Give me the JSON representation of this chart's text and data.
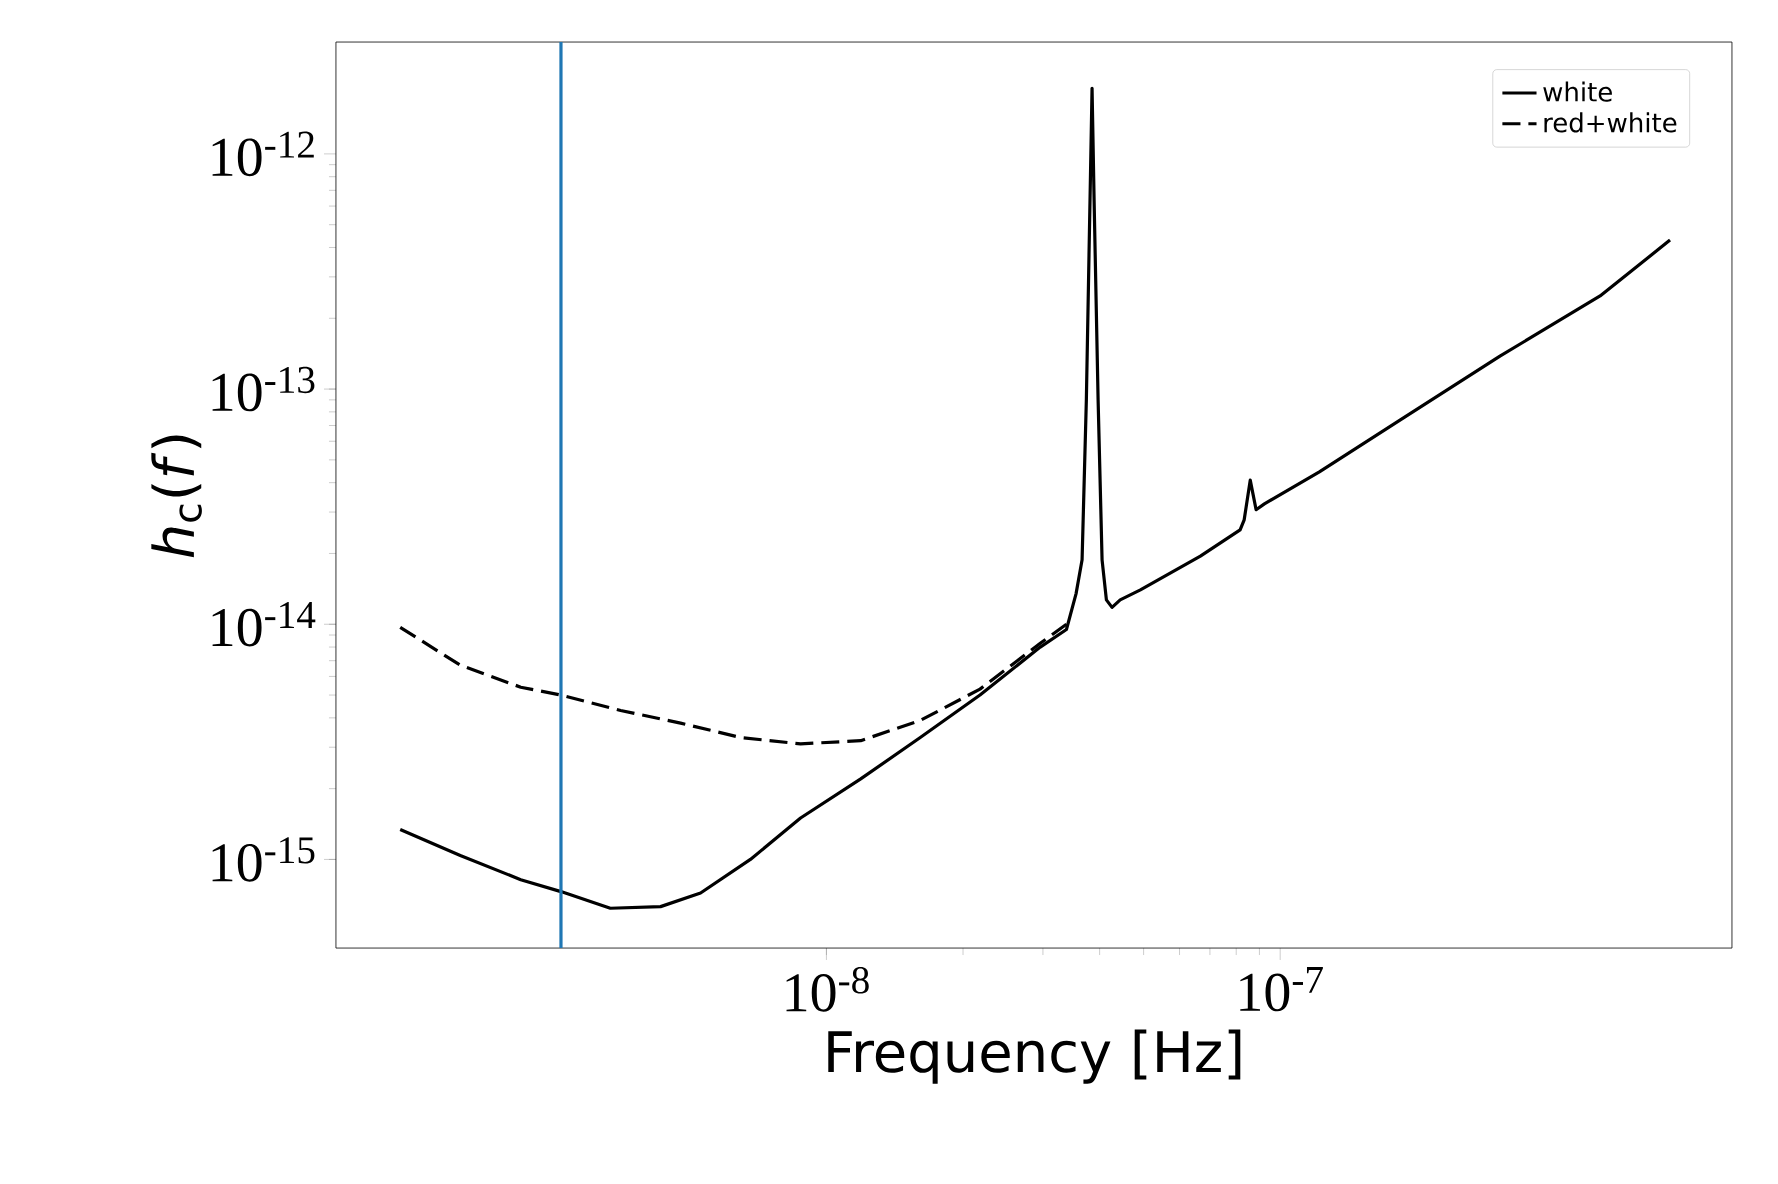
{
  "chart_data": {
    "type": "line",
    "xlabel": "Frequency [Hz]",
    "ylabel": "*h*$_{c}$(*f*)",
    "log": "xy",
    "legend": "top right",
    "grid": false,
    "marker": "none",
    "xlim": [
      8.3e-10,
      9.9e-07
    ],
    "ylim": [
      4.2e-16,
      2.99e-12
    ],
    "xticks": [
      {
        "value": 1e-08,
        "label": "10$^{-8}$"
      },
      {
        "value": 1e-07,
        "label": "10$^{-7}$"
      }
    ],
    "yticks": [
      {
        "value": 1e-15,
        "label": "10$^{-15}$"
      },
      {
        "value": 1e-14,
        "label": "10$^{-14}$"
      },
      {
        "value": 1e-13,
        "label": "10$^{-13}$"
      },
      {
        "value": 1e-12,
        "label": "10$^{-12}$"
      }
    ],
    "ref_lines": [
      {
        "axis": "x",
        "value": 2.6e-09,
        "color": "#1f77b4"
      }
    ],
    "series": [
      {
        "name": "white",
        "color": "#000000",
        "line_style": "solid",
        "x": [
          1.15e-09,
          1.56e-09,
          2.12e-09,
          2.6e-09,
          3.34e-09,
          4.31e-09,
          5.28e-09,
          6.8e-09,
          8.77e-09,
          1.19e-08,
          1.61e-08,
          2.18e-08,
          2.96e-08,
          3.38e-08,
          3.55e-08,
          3.66e-08,
          3.74e-08,
          3.81e-08,
          3.85e-08,
          3.89e-08,
          3.97e-08,
          4.05e-08,
          4.14e-08,
          4.26e-08,
          4.44e-08,
          4.92e-08,
          6.67e-08,
          8.16e-08,
          8.33e-08,
          8.59e-08,
          8.85e-08,
          9.23e-08,
          1.22e-07,
          1.84e-07,
          3.05e-07,
          5.07e-07,
          7.23e-07
        ],
        "values": [
          1.34e-15,
          1.04e-15,
          8.2e-16,
          7.3e-16,
          6.2e-16,
          6.3e-16,
          7.2e-16,
          1e-15,
          1.5e-15,
          2.2e-15,
          3.3e-15,
          5e-15,
          8e-15,
          9.5e-15,
          1.35e-14,
          1.88e-14,
          9e-14,
          6.4e-13,
          1.9e-12,
          6.4e-13,
          9e-14,
          1.88e-14,
          1.27e-14,
          1.18e-14,
          1.27e-14,
          1.4e-14,
          1.95e-14,
          2.52e-14,
          2.78e-14,
          4.1e-14,
          3.07e-14,
          3.25e-14,
          4.45e-14,
          7.4e-14,
          1.38e-13,
          2.49e-13,
          4.3e-13
        ]
      },
      {
        "name": "red+white",
        "color": "#000000",
        "line_style": "dashed",
        "x": [
          1.15e-09,
          1.56e-09,
          2.12e-09,
          2.6e-09,
          3.52e-09,
          4.77e-09,
          6.47e-09,
          8.77e-09,
          1.19e-08,
          1.61e-08,
          2.18e-08,
          2.96e-08,
          3.38e-08
        ],
        "values": [
          9.7e-15,
          6.7e-15,
          5.4e-15,
          5e-15,
          4.3e-15,
          3.8e-15,
          3.3e-15,
          3.1e-15,
          3.2e-15,
          3.9e-15,
          5.3e-15,
          8.3e-15,
          1e-14
        ]
      }
    ]
  }
}
